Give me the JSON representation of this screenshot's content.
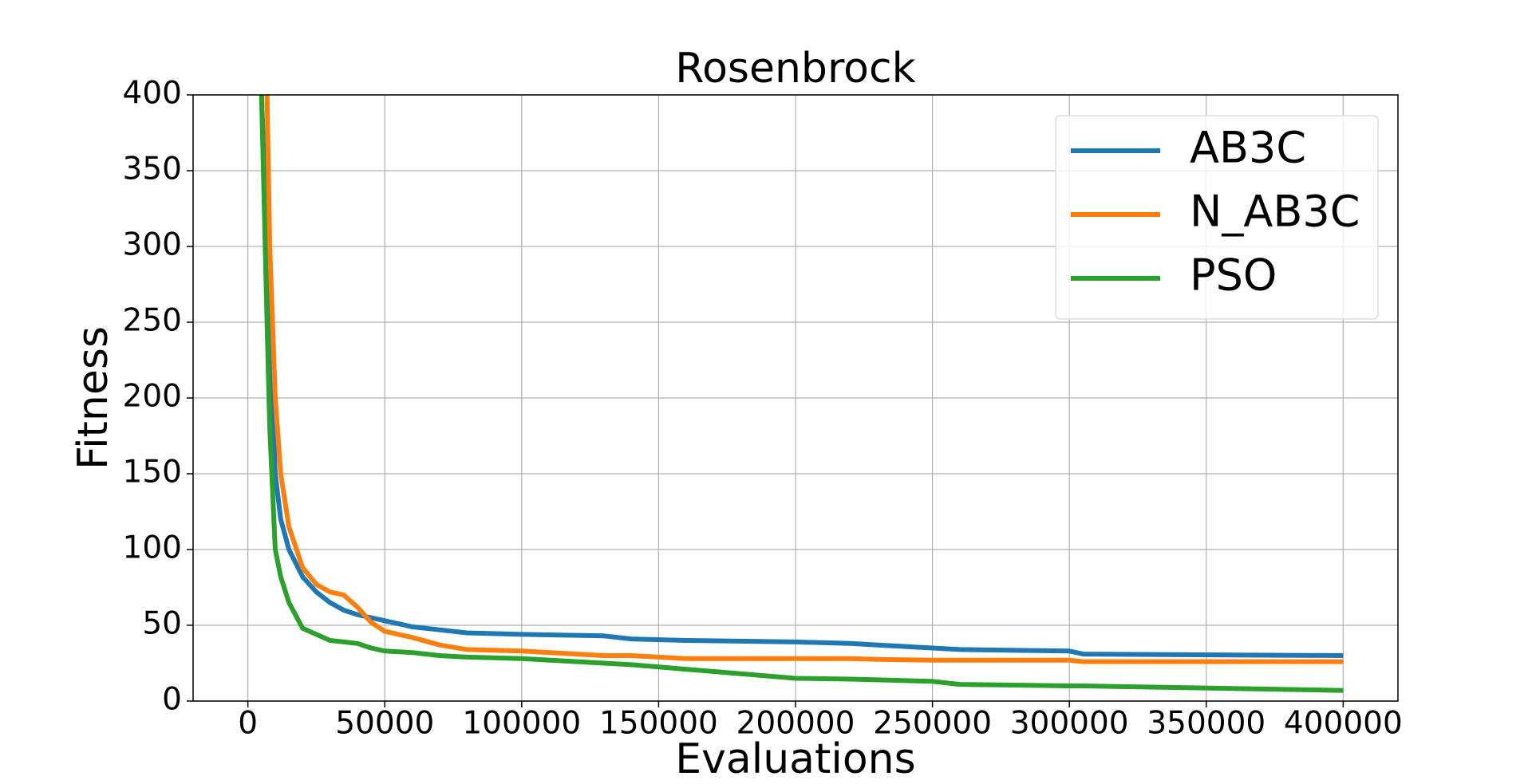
{
  "chart_data": {
    "type": "line",
    "title": "Rosenbrock",
    "x_label": "Evaluations",
    "y_label": "Fitness",
    "x": [
      5000,
      7000,
      8000,
      10000,
      12000,
      15000,
      20000,
      25000,
      30000,
      35000,
      40000,
      45000,
      50000,
      60000,
      70000,
      80000,
      100000,
      130000,
      140000,
      160000,
      200000,
      220000,
      230000,
      250000,
      260000,
      300000,
      305000,
      400000
    ],
    "series": [
      {
        "name": "AB3C",
        "color": "#1f77b4",
        "values": [
          400,
          300,
          250,
          150,
          120,
          100,
          82,
          72,
          65,
          60,
          57,
          55,
          53,
          49,
          47,
          45,
          44,
          43,
          41,
          40,
          39,
          38,
          37,
          35,
          34,
          33,
          31,
          30
        ]
      },
      {
        "name": "N_AB3C",
        "color": "#ff7f0e",
        "values": [
          null,
          400,
          300,
          200,
          150,
          115,
          88,
          77,
          72,
          70,
          62,
          52,
          46,
          42,
          37,
          34,
          33,
          30,
          30,
          28,
          28,
          28,
          27.5,
          27,
          27,
          27,
          26,
          26
        ]
      },
      {
        "name": "PSO",
        "color": "#2ca02c",
        "values": [
          400,
          250,
          180,
          100,
          82,
          65,
          48,
          44,
          40,
          39,
          38,
          35,
          33,
          32,
          30,
          29,
          28,
          25,
          24,
          21,
          15,
          14.5,
          14,
          13,
          11,
          10,
          10,
          7
        ]
      }
    ],
    "xlim": [
      -20000,
      420000
    ],
    "xticks": [
      0,
      50000,
      100000,
      150000,
      200000,
      250000,
      300000,
      350000,
      400000
    ],
    "ylim": [
      0,
      400
    ],
    "yticks": [
      0,
      50,
      100,
      150,
      200,
      250,
      300,
      350,
      400
    ],
    "grid": true,
    "legend": "upper right"
  }
}
